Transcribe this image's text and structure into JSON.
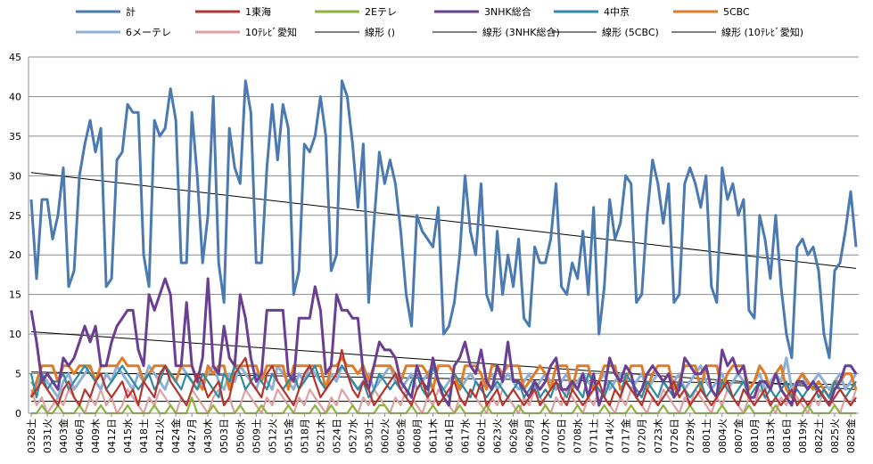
{
  "chart_data": {
    "type": "line",
    "title": "",
    "xlabel": "",
    "ylabel": "",
    "ylim": [
      0,
      45
    ],
    "yticks": [
      0,
      5,
      10,
      15,
      20,
      25,
      30,
      35,
      40,
      45
    ],
    "grid": true,
    "legend_position": "top",
    "x_tick_labels": [
      "0328土",
      "0331火",
      "0403金",
      "0406月",
      "0409木",
      "0412日",
      "0415水",
      "0418土",
      "0421火",
      "0424金",
      "0427月",
      "0430木",
      "0503日",
      "0506水",
      "0509土",
      "0512火",
      "0515金",
      "0518月",
      "0521木",
      "0524日",
      "0527水",
      "0530土",
      "0602火",
      "0605金",
      "0608月",
      "0611木",
      "0614日",
      "0617水",
      "0620土",
      "0623火",
      "0626金",
      "0629月",
      "0702木",
      "0705日",
      "0708水",
      "0711土",
      "0714火",
      "0717金",
      "0720月",
      "0723木",
      "0726日",
      "0729水",
      "0801土",
      "0804火",
      "0807金",
      "0810月",
      "0813木",
      "0816日",
      "0819水",
      "0822土",
      "0825火",
      "0828金"
    ],
    "x_tick_every": 3,
    "series": [
      {
        "name": "計",
        "color": "#4a7ab0",
        "width": 3,
        "values": [
          27,
          17,
          27,
          27,
          22,
          25,
          31,
          16,
          18,
          30,
          34,
          37,
          33,
          36,
          16,
          17,
          32,
          33,
          39,
          38,
          38,
          20,
          16,
          37,
          35,
          36,
          41,
          37,
          19,
          19,
          38,
          30,
          19,
          25,
          40,
          19,
          14,
          36,
          31,
          29,
          42,
          38,
          19,
          19,
          31,
          39,
          32,
          39,
          36,
          15,
          18,
          34,
          33,
          35,
          40,
          35,
          18,
          20,
          42,
          40,
          34,
          26,
          34,
          14,
          24,
          33,
          29,
          32,
          29,
          23,
          15,
          11,
          25,
          23,
          22,
          21,
          26,
          10,
          11,
          14,
          20,
          30,
          23,
          20,
          29,
          15,
          13,
          23,
          15,
          20,
          16,
          22,
          12,
          11,
          21,
          19,
          19,
          22,
          29,
          16,
          15,
          19,
          17,
          23,
          15,
          26,
          10,
          16,
          27,
          22,
          24,
          30,
          29,
          14,
          15,
          25,
          32,
          29,
          24,
          29,
          14,
          15,
          29,
          31,
          29,
          26,
          30,
          16,
          14,
          31,
          27,
          29,
          25,
          27,
          13,
          12,
          25,
          22,
          17,
          25,
          16,
          10,
          7,
          21,
          22,
          20,
          21,
          18,
          10,
          7,
          18,
          19,
          23,
          28,
          21
        ]
      },
      {
        "name": "1東海",
        "color": "#b5342f",
        "width": 2.2,
        "values": [
          2,
          3,
          4,
          3,
          2,
          1,
          3,
          4,
          2,
          1,
          3,
          2,
          4,
          5,
          3,
          2,
          3,
          4,
          2,
          3,
          1,
          4,
          3,
          2,
          5,
          6,
          4,
          3,
          2,
          1,
          3,
          5,
          4,
          2,
          3,
          4,
          1,
          2,
          5,
          6,
          7,
          4,
          3,
          2,
          5,
          6,
          4,
          3,
          2,
          1,
          3,
          5,
          6,
          4,
          2,
          3,
          4,
          5,
          8,
          5,
          3,
          2,
          4,
          3,
          1,
          2,
          3,
          4,
          5,
          3,
          2,
          1,
          3,
          4,
          2,
          3,
          1,
          2,
          3,
          4,
          2,
          1,
          3,
          2,
          4,
          1,
          2,
          3,
          1,
          2,
          3,
          2,
          1,
          2,
          3,
          1,
          2,
          3,
          4,
          2,
          1,
          3,
          2,
          1,
          2,
          3,
          4,
          2,
          1,
          3,
          2,
          4,
          3,
          2,
          1,
          3,
          2,
          1,
          2,
          3,
          4,
          2,
          3,
          1,
          2,
          3,
          2,
          1,
          2,
          3,
          4,
          2,
          1,
          3,
          2,
          1,
          2,
          3,
          1,
          2,
          1,
          2,
          3,
          1,
          2,
          1,
          2,
          3,
          2,
          1,
          2,
          3,
          2,
          1,
          2
        ]
      },
      {
        "name": "2Eテレ",
        "color": "#8db33e",
        "width": 2.2,
        "values": [
          0,
          0,
          1,
          0,
          0,
          1,
          0,
          0,
          0,
          1,
          0,
          0,
          0,
          1,
          0,
          0,
          0,
          0,
          1,
          0,
          0,
          0,
          0,
          1,
          0,
          0,
          1,
          0,
          0,
          0,
          2,
          0,
          0,
          0,
          1,
          0,
          0,
          0,
          0,
          1,
          0,
          0,
          0,
          1,
          0,
          0,
          0,
          0,
          1,
          0,
          0,
          0,
          0,
          1,
          0,
          0,
          1,
          0,
          0,
          0,
          1,
          0,
          0,
          0,
          0,
          1,
          1,
          0,
          0,
          0,
          0,
          1,
          0,
          0,
          0,
          1,
          0,
          0,
          0,
          0,
          1,
          0,
          0,
          0,
          0,
          1,
          0,
          0,
          0,
          0,
          0,
          1,
          0,
          0,
          0,
          0,
          1,
          0,
          0,
          0,
          0,
          0,
          1,
          0,
          0,
          0,
          0,
          1,
          0,
          0,
          0,
          0,
          1,
          0,
          0,
          0,
          0,
          0,
          1,
          0,
          0,
          0,
          0,
          1,
          0,
          0,
          0,
          0,
          0,
          1,
          0,
          0,
          0,
          0,
          1,
          0,
          0,
          0,
          0,
          1,
          0,
          0,
          0,
          0,
          0,
          1,
          0,
          0,
          0,
          0,
          1,
          0,
          0,
          0,
          0
        ]
      },
      {
        "name": "3NHK総合",
        "color": "#6a3f92",
        "width": 3,
        "values": [
          13,
          9,
          4,
          5,
          4,
          3,
          7,
          6,
          7,
          9,
          11,
          9,
          11,
          6,
          6,
          9,
          11,
          12,
          13,
          13,
          8,
          6,
          15,
          13,
          15,
          17,
          15,
          6,
          6,
          14,
          6,
          4,
          7,
          17,
          6,
          5,
          11,
          7,
          6,
          15,
          12,
          7,
          4,
          5,
          13,
          13,
          13,
          13,
          5,
          4,
          12,
          12,
          12,
          16,
          13,
          5,
          6,
          15,
          13,
          13,
          12,
          12,
          5,
          3,
          6,
          9,
          8,
          8,
          7,
          4,
          3,
          2,
          6,
          4,
          3,
          7,
          4,
          2,
          1,
          6,
          7,
          9,
          6,
          5,
          8,
          4,
          3,
          6,
          4,
          9,
          4,
          4,
          3,
          2,
          4,
          3,
          4,
          6,
          7,
          3,
          3,
          4,
          3,
          5,
          2,
          5,
          1,
          3,
          7,
          5,
          4,
          6,
          5,
          2,
          3,
          5,
          6,
          5,
          4,
          5,
          2,
          3,
          7,
          6,
          5,
          5,
          6,
          3,
          2,
          8,
          6,
          7,
          5,
          6,
          2,
          2,
          4,
          4,
          3,
          5,
          3,
          2,
          1,
          4,
          4,
          3,
          4,
          3,
          2,
          1,
          3,
          4,
          6,
          6,
          5
        ]
      },
      {
        "name": "4中京",
        "color": "#2e8ba3",
        "width": 2.2,
        "values": [
          5,
          2,
          5,
          3,
          4,
          4,
          5,
          3,
          4,
          5,
          6,
          5,
          4,
          5,
          3,
          4,
          5,
          6,
          5,
          4,
          3,
          4,
          5,
          3,
          4,
          6,
          5,
          4,
          3,
          5,
          4,
          3,
          5,
          4,
          3,
          2,
          5,
          4,
          6,
          5,
          3,
          4,
          5,
          4,
          3,
          5,
          4,
          3,
          4,
          5,
          3,
          4,
          5,
          6,
          4,
          3,
          4,
          5,
          6,
          5,
          4,
          3,
          4,
          2,
          3,
          5,
          4,
          3,
          4,
          3,
          2,
          4,
          5,
          3,
          2,
          6,
          4,
          3,
          2,
          5,
          4,
          3,
          2,
          4,
          3,
          2,
          3,
          4,
          3,
          2,
          3,
          4,
          2,
          3,
          4,
          2,
          3,
          2,
          4,
          3,
          2,
          4,
          3,
          2,
          5,
          4,
          3,
          2,
          4,
          3,
          2,
          5,
          4,
          3,
          2,
          4,
          3,
          2,
          4,
          3,
          2,
          4,
          3,
          2,
          3,
          4,
          2,
          3,
          2,
          4,
          3,
          2,
          3,
          4,
          2,
          3,
          4,
          2,
          3,
          2,
          3,
          4,
          2,
          3,
          2,
          3,
          4,
          2,
          3,
          2,
          4,
          3,
          2,
          3,
          4
        ]
      },
      {
        "name": "5CBC",
        "color": "#e07b26",
        "width": 3,
        "values": [
          2,
          4,
          6,
          6,
          6,
          4,
          6,
          6,
          5,
          6,
          6,
          6,
          4,
          6,
          6,
          6,
          6,
          7,
          6,
          6,
          6,
          4,
          5,
          6,
          6,
          6,
          5,
          4,
          6,
          6,
          6,
          4,
          3,
          6,
          5,
          6,
          6,
          3,
          6,
          6,
          6,
          6,
          6,
          4,
          6,
          6,
          6,
          6,
          3,
          6,
          6,
          6,
          6,
          6,
          6,
          3,
          6,
          6,
          7,
          6,
          6,
          5,
          6,
          4,
          6,
          6,
          6,
          6,
          5,
          4,
          6,
          6,
          6,
          6,
          5,
          3,
          6,
          6,
          6,
          5,
          3,
          6,
          6,
          6,
          5,
          3,
          6,
          6,
          5,
          6,
          6,
          6,
          3,
          4,
          5,
          6,
          5,
          3,
          6,
          6,
          6,
          3,
          6,
          6,
          6,
          3,
          4,
          6,
          6,
          6,
          3,
          4,
          6,
          6,
          6,
          3,
          5,
          6,
          6,
          6,
          3,
          4,
          6,
          6,
          6,
          3,
          6,
          6,
          6,
          3,
          5,
          6,
          6,
          6,
          3,
          4,
          6,
          5,
          3,
          5,
          6,
          3,
          2,
          4,
          5,
          4,
          3,
          4,
          3,
          2,
          4,
          4,
          5,
          5,
          3
        ]
      },
      {
        "name": "6メーテレ",
        "color": "#8fb0d6",
        "width": 3,
        "values": [
          4,
          3,
          5,
          4,
          3,
          2,
          4,
          5,
          3,
          4,
          5,
          6,
          4,
          3,
          5,
          4,
          6,
          5,
          4,
          3,
          5,
          4,
          6,
          5,
          4,
          3,
          5,
          4,
          6,
          5,
          4,
          3,
          4,
          5,
          6,
          4,
          3,
          5,
          4,
          6,
          5,
          4,
          3,
          5,
          4,
          3,
          6,
          5,
          4,
          3,
          5,
          4,
          6,
          5,
          4,
          3,
          5,
          4,
          6,
          5,
          4,
          3,
          4,
          5,
          3,
          4,
          5,
          6,
          4,
          3,
          4,
          5,
          3,
          4,
          5,
          6,
          4,
          3,
          4,
          5,
          3,
          4,
          5,
          4,
          3,
          4,
          5,
          3,
          4,
          5,
          4,
          3,
          4,
          5,
          3,
          4,
          5,
          4,
          3,
          4,
          5,
          3,
          4,
          5,
          4,
          3,
          4,
          5,
          3,
          4,
          5,
          4,
          3,
          4,
          5,
          3,
          4,
          5,
          4,
          3,
          4,
          5,
          3,
          4,
          5,
          6,
          4,
          3,
          4,
          5,
          3,
          4,
          5,
          4,
          3,
          4,
          5,
          3,
          4,
          5,
          4,
          7,
          3,
          4,
          5,
          3,
          4,
          5,
          4,
          3,
          4,
          5,
          3,
          4,
          5
        ]
      },
      {
        "name": "10ﾃﾚﾋﾞ愛知",
        "color": "#dea0a0",
        "width": 2.2,
        "values": [
          3,
          1,
          2,
          0,
          1,
          2,
          1,
          3,
          2,
          1,
          0,
          2,
          1,
          3,
          1,
          2,
          0,
          1,
          3,
          2,
          1,
          0,
          2,
          1,
          3,
          2,
          1,
          0,
          2,
          1,
          3,
          2,
          1,
          0,
          2,
          3,
          1,
          2,
          0,
          1,
          3,
          2,
          1,
          0,
          2,
          1,
          3,
          2,
          1,
          0,
          2,
          1,
          3,
          2,
          1,
          0,
          2,
          1,
          3,
          2,
          1,
          0,
          2,
          1,
          3,
          2,
          1,
          0,
          2,
          1,
          3,
          2,
          1,
          0,
          2,
          1,
          3,
          2,
          1,
          0,
          2,
          1,
          3,
          2,
          1,
          0,
          2,
          1,
          3,
          2,
          1,
          0,
          2,
          1,
          3,
          2,
          1,
          0,
          2,
          1,
          3,
          2,
          1,
          0,
          2,
          1,
          3,
          2,
          1,
          0,
          2,
          1,
          3,
          2,
          1,
          0,
          2,
          1,
          3,
          2,
          1,
          0,
          2,
          1,
          3,
          2,
          1,
          0,
          2,
          1,
          3,
          2,
          1,
          0,
          2,
          1,
          3,
          2,
          1,
          0,
          2,
          1,
          3,
          2,
          1,
          0,
          2,
          1,
          3,
          2,
          1,
          0,
          2,
          1,
          3
        ]
      }
    ],
    "trendlines": [
      {
        "name": "線形 ()",
        "color": "#000000",
        "start": 1.5,
        "end": 1.5
      },
      {
        "name": "線形 (3NHK総合)",
        "color": "#000000",
        "start": 10.3,
        "end": 3.0
      },
      {
        "name": "線形 (5CBC)",
        "color": "#000000",
        "start": 5.2,
        "end": 3.6
      },
      {
        "name": "線形 (10ﾃﾚﾋﾞ愛知)",
        "color": "#000000",
        "start": 30.4,
        "end": 18.3
      }
    ]
  }
}
